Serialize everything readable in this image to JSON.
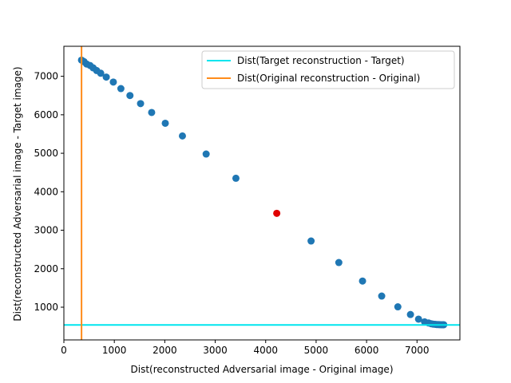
{
  "chart_data": {
    "type": "scatter",
    "title": "",
    "xlabel": "Dist(reconstructed Adversarial image - Original image)",
    "ylabel": "Dist(reconstructed Adversarial image - Target image)",
    "xlim": [
      0,
      7850
    ],
    "ylim": [
      150,
      7780
    ],
    "xticks": [
      0,
      1000,
      2000,
      3000,
      4000,
      5000,
      6000,
      7000
    ],
    "yticks": [
      1000,
      2000,
      3000,
      4000,
      5000,
      6000,
      7000
    ],
    "grid": false,
    "legend_position": "top-right",
    "series": [
      {
        "name": "points",
        "color": "#1f77b4",
        "points": [
          [
            350,
            7420
          ],
          [
            400,
            7380
          ],
          [
            450,
            7320
          ],
          [
            520,
            7280
          ],
          [
            580,
            7220
          ],
          [
            650,
            7150
          ],
          [
            730,
            7080
          ],
          [
            840,
            6980
          ],
          [
            980,
            6850
          ],
          [
            1130,
            6680
          ],
          [
            1310,
            6500
          ],
          [
            1520,
            6290
          ],
          [
            1740,
            6060
          ],
          [
            2010,
            5780
          ],
          [
            2350,
            5450
          ],
          [
            2820,
            4980
          ],
          [
            3410,
            4350
          ],
          [
            4900,
            2720
          ],
          [
            5450,
            2160
          ],
          [
            5920,
            1680
          ],
          [
            6300,
            1290
          ],
          [
            6620,
            1010
          ],
          [
            6870,
            810
          ],
          [
            7030,
            690
          ],
          [
            7150,
            620
          ],
          [
            7230,
            590
          ],
          [
            7280,
            570
          ],
          [
            7320,
            560
          ],
          [
            7360,
            555
          ],
          [
            7390,
            550
          ],
          [
            7420,
            548
          ],
          [
            7450,
            546
          ],
          [
            7480,
            545
          ],
          [
            7510,
            545
          ],
          [
            7530,
            545
          ]
        ]
      },
      {
        "name": "highlight",
        "color": "#e00000",
        "points": [
          [
            4220,
            3440
          ]
        ]
      }
    ],
    "hlines": [
      {
        "name": "Dist(Target reconstruction - Target)",
        "y": 540,
        "color": "#00e5ee"
      }
    ],
    "vlines": [
      {
        "name": "Dist(Original reconstruction - Original)",
        "x": 350,
        "color": "#ff8c1a"
      }
    ],
    "legend": [
      {
        "label": "Dist(Target reconstruction - Target)",
        "color": "#00e5ee"
      },
      {
        "label": "Dist(Original reconstruction - Original)",
        "color": "#ff8c1a"
      }
    ]
  }
}
